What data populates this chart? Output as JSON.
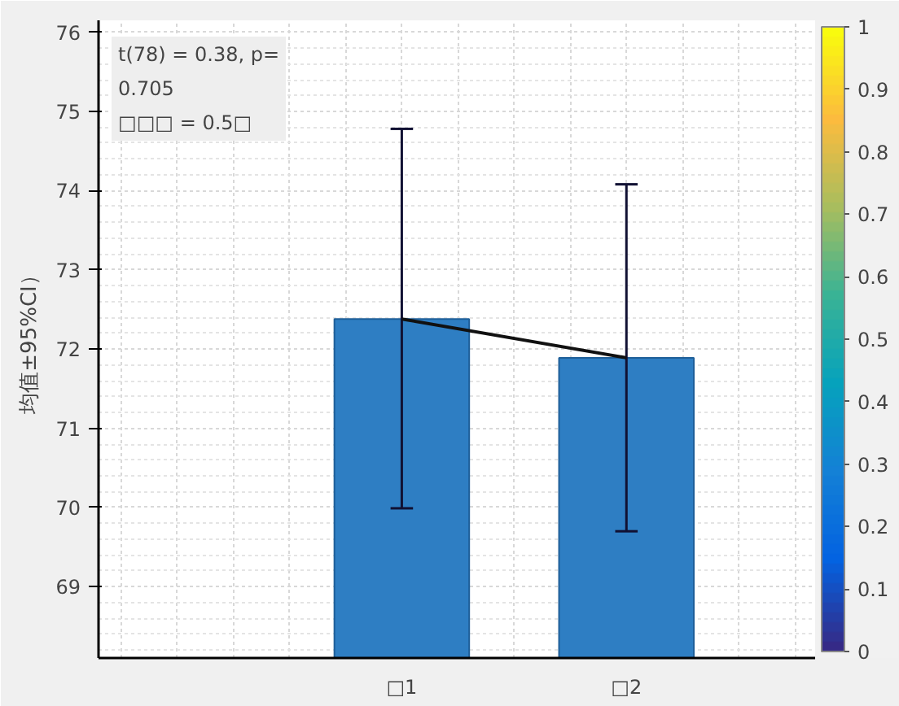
{
  "chart_data": {
    "type": "bar",
    "ylabel": "均值±95%CI）",
    "categories": [
      "□1",
      "□2"
    ],
    "series": [
      {
        "color": "#2e7ec3",
        "values": [
          72.38,
          71.89
        ],
        "errors": [
          [
            69.99,
            74.78
          ],
          [
            69.7,
            74.08
          ]
        ]
      },
      {
        "type": "line",
        "color": "#111111",
        "values": [
          72.38,
          71.89
        ]
      }
    ],
    "ylim": [
      68.1,
      76.15
    ],
    "yticks": [
      69,
      70,
      71,
      72,
      73,
      74,
      75,
      76
    ],
    "clim": [
      0,
      1
    ],
    "cticks": [
      0,
      0.1,
      0.2,
      0.3,
      0.4,
      0.5,
      0.6,
      0.7,
      0.8,
      0.9,
      1
    ],
    "annotations": [
      "t(78) = 0.38, p=\n0.705\n□□□ = 0.5□"
    ],
    "grid": true
  }
}
